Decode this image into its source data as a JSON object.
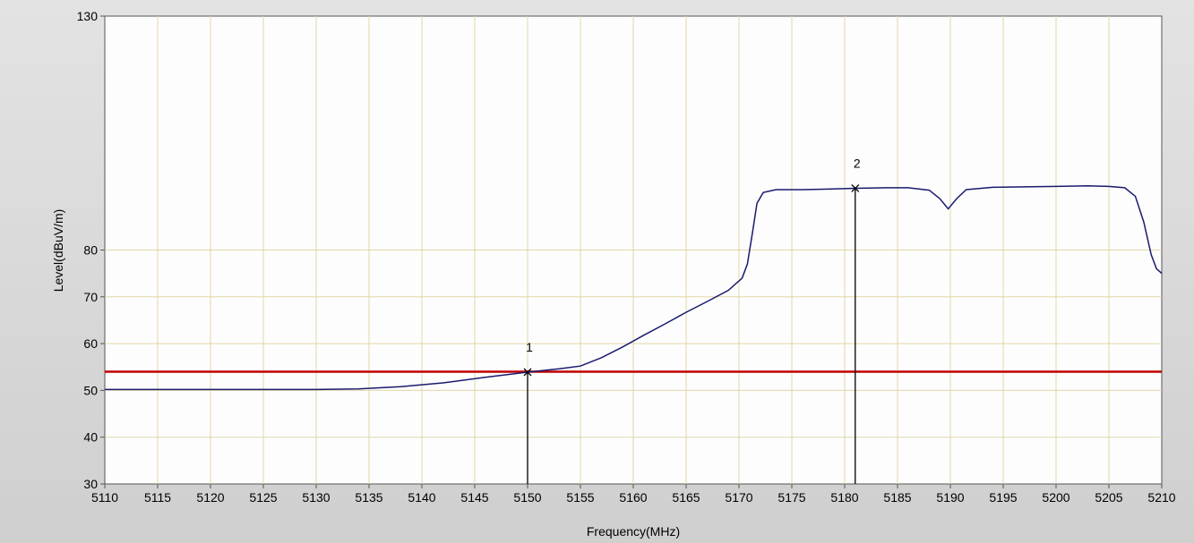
{
  "chart_data": {
    "type": "line",
    "xlabel": "Frequency(MHz)",
    "ylabel": "Level(dBuV/m)",
    "xlim": [
      5110,
      5210
    ],
    "ylim": [
      30,
      130
    ],
    "x_ticks": [
      5110,
      5115,
      5120,
      5125,
      5130,
      5135,
      5140,
      5145,
      5150,
      5155,
      5160,
      5165,
      5170,
      5175,
      5180,
      5185,
      5190,
      5195,
      5200,
      5205,
      5210
    ],
    "y_ticks": [
      30,
      40,
      50,
      60,
      70,
      80,
      130
    ],
    "grid": true,
    "limit_line": {
      "y": 54,
      "color": "#c00000"
    },
    "series": [
      {
        "color": "#1a1a6e",
        "points": [
          [
            5110,
            50.2
          ],
          [
            5120,
            50.2
          ],
          [
            5130,
            50.2
          ],
          [
            5134,
            50.3
          ],
          [
            5138,
            50.8
          ],
          [
            5142,
            51.6
          ],
          [
            5146,
            52.8
          ],
          [
            5150,
            53.9
          ],
          [
            5153,
            54.6
          ],
          [
            5155,
            55.2
          ],
          [
            5157,
            57.0
          ],
          [
            5159,
            59.3
          ],
          [
            5161,
            61.8
          ],
          [
            5163,
            64.2
          ],
          [
            5165,
            66.7
          ],
          [
            5167,
            69.0
          ],
          [
            5169,
            71.4
          ],
          [
            5170.3,
            74.0
          ],
          [
            5170.8,
            77.0
          ],
          [
            5171.3,
            84.0
          ],
          [
            5171.7,
            90.0
          ],
          [
            5172.3,
            92.3
          ],
          [
            5173.5,
            92.9
          ],
          [
            5176,
            92.9
          ],
          [
            5178,
            93.0
          ],
          [
            5181,
            93.2
          ],
          [
            5184,
            93.3
          ],
          [
            5186,
            93.3
          ],
          [
            5188,
            92.8
          ],
          [
            5189,
            91.0
          ],
          [
            5189.8,
            88.8
          ],
          [
            5190.6,
            91.0
          ],
          [
            5191.5,
            92.9
          ],
          [
            5194,
            93.4
          ],
          [
            5197,
            93.5
          ],
          [
            5200,
            93.6
          ],
          [
            5203,
            93.7
          ],
          [
            5205,
            93.6
          ],
          [
            5206.5,
            93.3
          ],
          [
            5207.5,
            91.5
          ],
          [
            5208.3,
            86.0
          ],
          [
            5209,
            79.0
          ],
          [
            5209.5,
            76.0
          ],
          [
            5210,
            75.0
          ]
        ]
      }
    ],
    "markers": [
      {
        "label": "1",
        "x": 5150,
        "y": 53.9
      },
      {
        "label": "2",
        "x": 5181,
        "y": 93.2
      }
    ]
  }
}
